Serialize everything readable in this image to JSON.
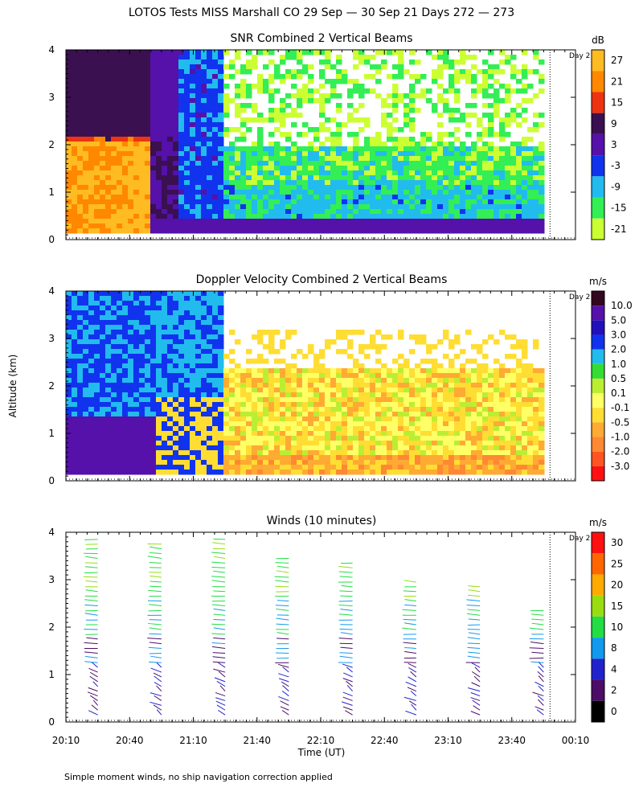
{
  "figure": {
    "title": "LOTOS Tests MISS Marshall CO  29 Sep — 30 Sep 21 Days 272 — 273",
    "ylabel": "Altitude (km)",
    "xlabel": "Time (UT)",
    "footnote": "Simple moment winds, no ship navigation correction applied",
    "day_marker_label": "Day 2",
    "x_ticks": [
      "20:10",
      "20:40",
      "21:10",
      "21:40",
      "22:10",
      "22:40",
      "23:10",
      "23:40",
      "00:10"
    ],
    "y_ticks": [
      "0",
      "1",
      "2",
      "3",
      "4"
    ]
  },
  "chart_data": [
    {
      "type": "heatmap",
      "title": "SNR Combined 2 Vertical Beams",
      "xlabel": "Time (UT)",
      "ylabel": "Altitude (km)",
      "xlim": [
        "20:10",
        "00:10"
      ],
      "ylim": [
        0,
        4
      ],
      "day_boundary_time": "23:58",
      "colorbar": {
        "unit": "dB",
        "labels": [
          "-21",
          "-15",
          "-9",
          "-3",
          "3",
          "9",
          "15",
          "21",
          "27"
        ],
        "colors": [
          "#ccff33",
          "#33ee55",
          "#22bbee",
          "#1133ee",
          "#5511aa",
          "#3a1050",
          "#ee3311",
          "#ff8800",
          "#ffbb22"
        ]
      },
      "regions": [
        {
          "desc": "high SNR lower layer",
          "time_range": [
            "20:10",
            "20:45"
          ],
          "alt_range": [
            0.2,
            3.9
          ],
          "range_db": [
            9,
            27
          ]
        },
        {
          "desc": "strong echo core",
          "time_range": [
            "20:10",
            "20:40"
          ],
          "alt_range": [
            0.3,
            2.0
          ],
          "range_db": [
            21,
            27
          ]
        },
        {
          "desc": "weak echo aloft",
          "time_range": [
            "21:10",
            "23:55"
          ],
          "alt_range": [
            1.8,
            4.0
          ],
          "range_db": [
            -21,
            -3
          ]
        },
        {
          "desc": "moderate boundary layer",
          "time_range": [
            "20:45",
            "23:55"
          ],
          "alt_range": [
            0.2,
            0.6
          ],
          "range_db": [
            3,
            9
          ]
        }
      ]
    },
    {
      "type": "heatmap",
      "title": "Doppler Velocity Combined 2 Vertical Beams",
      "xlabel": "Time (UT)",
      "ylabel": "Altitude (km)",
      "xlim": [
        "20:10",
        "00:10"
      ],
      "ylim": [
        0,
        4
      ],
      "colorbar": {
        "unit": "m/s",
        "labels": [
          "-3.0",
          "-2.0",
          "-1.0",
          "-0.5",
          "-0.1",
          "0.1",
          "0.5",
          "1.0",
          "2.0",
          "3.0",
          "5.0",
          "10.0"
        ],
        "colors": [
          "#ff1111",
          "#ff5522",
          "#ff8833",
          "#ffaa33",
          "#ffdd33",
          "#ffff66",
          "#bbee33",
          "#33dd33",
          "#22bbee",
          "#1133ee",
          "#2211bb",
          "#5511aa",
          "#33091e"
        ]
      },
      "regions": [
        {
          "desc": "upward motion band",
          "time_range": [
            "20:10",
            "21:00"
          ],
          "alt_range": [
            0.2,
            4.0
          ],
          "range_ms": [
            1.0,
            5.0
          ]
        },
        {
          "desc": "near-zero to downward",
          "time_range": [
            "21:00",
            "23:55"
          ],
          "alt_range": [
            0.2,
            2.5
          ],
          "range_ms": [
            -2.0,
            0.5
          ]
        }
      ]
    },
    {
      "type": "scatter",
      "title": "Winds (10 minutes)",
      "xlabel": "Time (UT)",
      "ylabel": "Altitude (km)",
      "xlim": [
        "20:10",
        "00:10"
      ],
      "ylim": [
        0,
        4
      ],
      "colorbar": {
        "unit": "m/s",
        "labels": [
          "0",
          "2",
          "4",
          "8",
          "10",
          "15",
          "20",
          "25",
          "30"
        ],
        "colors": [
          "#000000",
          "#4d0d66",
          "#2222cc",
          "#1199ee",
          "#22dd44",
          "#99dd11",
          "#ffaa00",
          "#ff6600",
          "#ff1111"
        ]
      },
      "profile_times": [
        "20:25",
        "20:55",
        "21:25",
        "21:55",
        "22:25",
        "22:55",
        "23:25",
        "23:55"
      ],
      "profile_top_km": [
        3.9,
        3.85,
        3.9,
        3.5,
        3.4,
        3.05,
        2.9,
        2.4
      ],
      "series_note": "wind barbs: lower levels ~2–8 m/s (purple/blue), upper levels ~10–20 m/s (green/yellow)"
    }
  ]
}
